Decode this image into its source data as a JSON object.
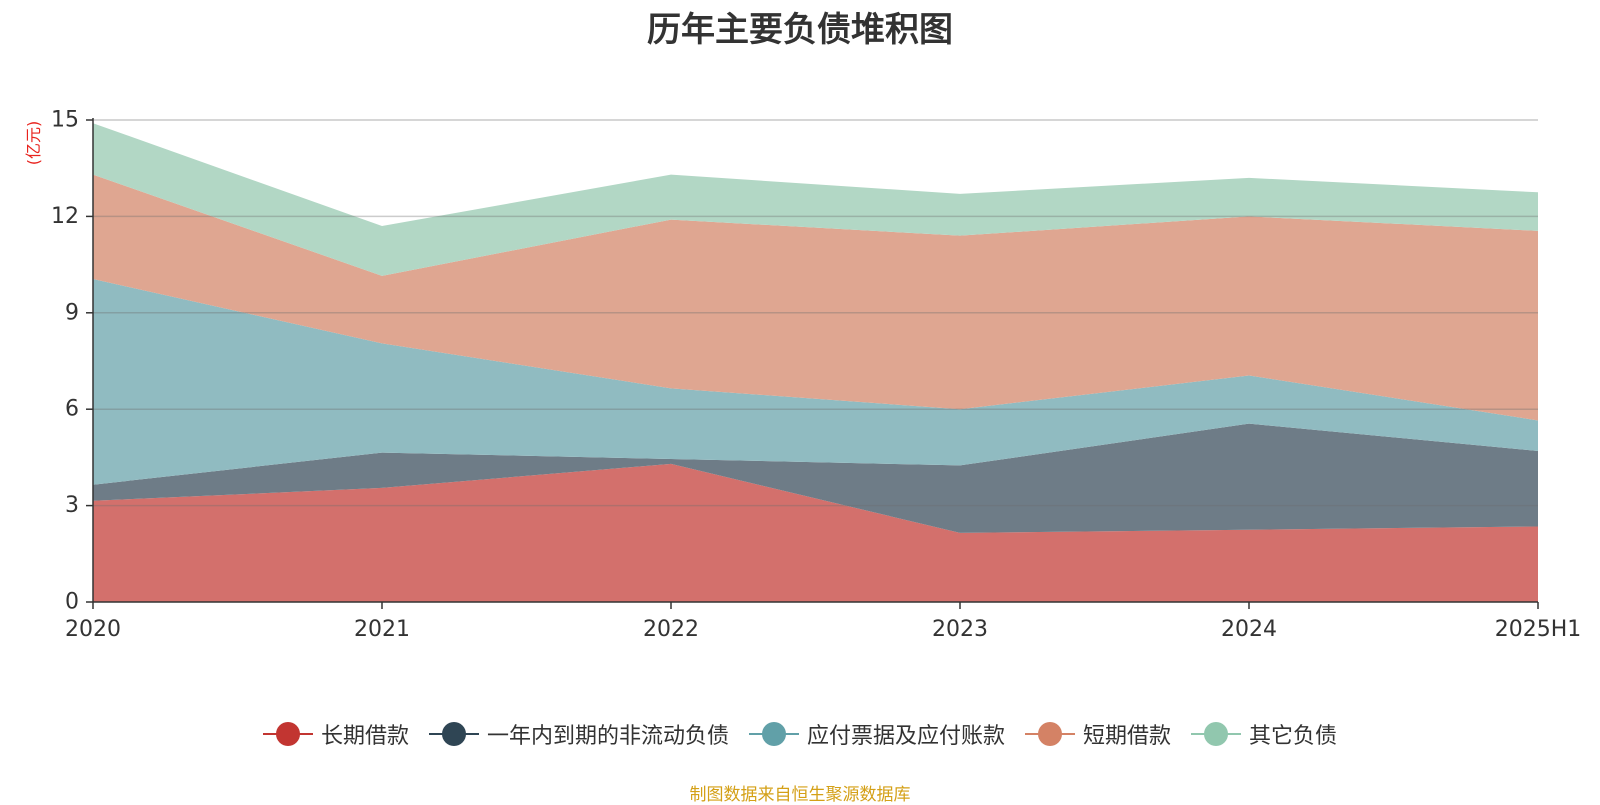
{
  "chart_data": {
    "type": "area",
    "stacked": true,
    "title": "历年主要负债堆积图",
    "unit_label": "(亿元)",
    "categories": [
      "2020",
      "2021",
      "2022",
      "2023",
      "2024",
      "2025H1"
    ],
    "ylim": [
      0,
      15
    ],
    "yticks": [
      0,
      3,
      6,
      9,
      12,
      15
    ],
    "grid": true,
    "legend_position": "bottom",
    "series": [
      {
        "name": "长期借款",
        "color": "#c23531",
        "fill": "#d3706c",
        "values": [
          3.15,
          3.55,
          4.3,
          2.15,
          2.25,
          2.35
        ]
      },
      {
        "name": "一年内到期的非流动负债",
        "color": "#2f4554",
        "fill": "#6e7c87",
        "values": [
          0.5,
          1.1,
          0.15,
          2.1,
          3.3,
          2.35
        ]
      },
      {
        "name": "应付票据及应付账款",
        "color": "#61a0a8",
        "fill": "#90bbc1",
        "values": [
          6.4,
          3.4,
          2.2,
          1.75,
          1.5,
          0.95
        ]
      },
      {
        "name": "短期借款",
        "color": "#d48265",
        "fill": "#dfa691",
        "values": [
          3.25,
          2.1,
          5.25,
          5.4,
          4.95,
          5.9
        ]
      },
      {
        "name": "其它负债",
        "color": "#91c7ae",
        "fill": "#b2d7c5",
        "values": [
          1.6,
          1.55,
          1.4,
          1.3,
          1.2,
          1.2
        ]
      }
    ],
    "source": "制图数据来自恒生聚源数据库"
  }
}
